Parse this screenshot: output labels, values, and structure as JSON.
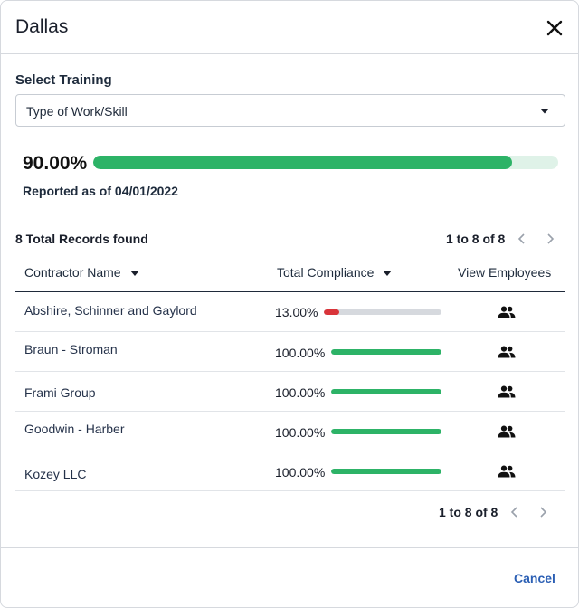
{
  "dialog": {
    "title": "Dallas",
    "close_icon": "close-icon"
  },
  "training": {
    "label": "Select Training",
    "selected": "Type of Work/Skill",
    "caret_icon": "caret-down-icon"
  },
  "summary": {
    "percent_label": "90.00%",
    "percent_value": 0.9,
    "reported": "Reported as of 04/01/2022",
    "bar_color": "#2db367",
    "track_color": "#dff2e8"
  },
  "records_found": "8 Total Records found",
  "pagination": {
    "range": "1 to 8 of 8",
    "prev_icon": "chevron-left-icon",
    "next_icon": "chevron-right-icon"
  },
  "table": {
    "columns": {
      "name": "Contractor Name",
      "compliance": "Total Compliance",
      "employees": "View Employees"
    },
    "rows": [
      {
        "name": "Abshire, Schinner and Gaylord",
        "compliance_label": "13.00%",
        "compliance": 0.13,
        "color": "#d9343a",
        "icon": "people-icon"
      },
      {
        "name": "Braun - Stroman",
        "compliance_label": "100.00%",
        "compliance": 1.0,
        "color": "#2db367",
        "icon": "people-icon"
      },
      {
        "name": "Frami Group",
        "compliance_label": "100.00%",
        "compliance": 1.0,
        "color": "#2db367",
        "icon": "people-icon"
      },
      {
        "name": "Goodwin - Harber",
        "compliance_label": "100.00%",
        "compliance": 1.0,
        "color": "#2db367",
        "icon": "people-icon"
      },
      {
        "name": "Kozey LLC",
        "compliance_label": "100.00%",
        "compliance": 1.0,
        "color": "#2db367",
        "icon": "people-icon"
      }
    ]
  },
  "footer": {
    "cancel": "Cancel",
    "accent": "#2b5fb4"
  }
}
